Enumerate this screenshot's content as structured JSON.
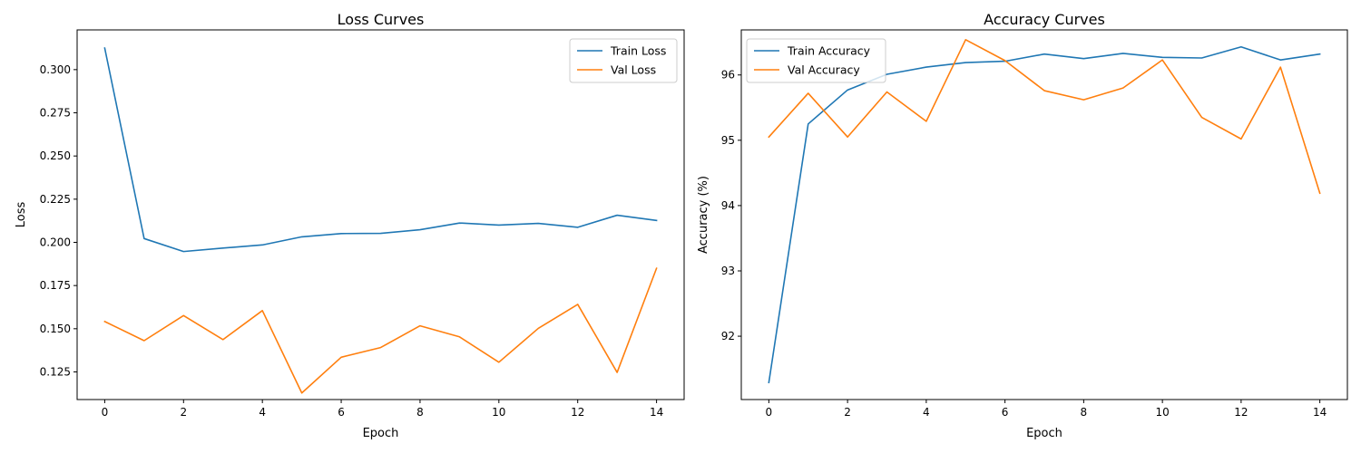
{
  "chart_data": [
    {
      "type": "line",
      "title": "Loss Curves",
      "xlabel": "Epoch",
      "ylabel": "Loss",
      "x": [
        0,
        1,
        2,
        3,
        4,
        5,
        6,
        7,
        8,
        9,
        10,
        11,
        12,
        13,
        14
      ],
      "xlim": [
        -0.7,
        14.7
      ],
      "ylim": [
        0.109,
        0.323
      ],
      "xticks": [
        0,
        2,
        4,
        6,
        8,
        10,
        12,
        14
      ],
      "yticks": [
        0.125,
        0.15,
        0.175,
        0.2,
        0.225,
        0.25,
        0.275,
        0.3
      ],
      "ytick_labels": [
        "0.125",
        "0.150",
        "0.175",
        "0.200",
        "0.225",
        "0.250",
        "0.275",
        "0.300"
      ],
      "legend_position": "top-right",
      "series": [
        {
          "name": "Train Loss",
          "color": "#1f77b4",
          "values": [
            0.3125,
            0.2022,
            0.1947,
            0.1967,
            0.1985,
            0.2032,
            0.2051,
            0.2052,
            0.2073,
            0.2112,
            0.21,
            0.211,
            0.2087,
            0.2157,
            0.2127
          ]
        },
        {
          "name": "Val Loss",
          "color": "#ff7f0e",
          "values": [
            0.1542,
            0.1431,
            0.1576,
            0.1437,
            0.1605,
            0.1128,
            0.1335,
            0.1391,
            0.1517,
            0.1453,
            0.1306,
            0.1502,
            0.1641,
            0.1247,
            0.185
          ]
        }
      ]
    },
    {
      "type": "line",
      "title": "Accuracy Curves",
      "xlabel": "Epoch",
      "ylabel": "Accuracy (%)",
      "x": [
        0,
        1,
        2,
        3,
        4,
        5,
        6,
        7,
        8,
        9,
        10,
        11,
        12,
        13,
        14
      ],
      "xlim": [
        -0.7,
        14.7
      ],
      "ylim": [
        91.03,
        96.69
      ],
      "xticks": [
        0,
        2,
        4,
        6,
        8,
        10,
        12,
        14
      ],
      "yticks": [
        92,
        93,
        94,
        95,
        96
      ],
      "ytick_labels": [
        "92",
        "93",
        "94",
        "95",
        "96"
      ],
      "legend_position": "top-left",
      "series": [
        {
          "name": "Train Accuracy",
          "color": "#1f77b4",
          "values": [
            91.29,
            95.25,
            95.77,
            96.01,
            96.12,
            96.19,
            96.21,
            96.32,
            96.25,
            96.33,
            96.27,
            96.26,
            96.43,
            96.23,
            96.32
          ]
        },
        {
          "name": "Val Accuracy",
          "color": "#ff7f0e",
          "values": [
            95.05,
            95.72,
            95.05,
            95.74,
            95.29,
            96.54,
            96.22,
            95.76,
            95.62,
            95.8,
            96.23,
            95.35,
            95.02,
            96.12,
            94.19
          ]
        }
      ]
    }
  ]
}
